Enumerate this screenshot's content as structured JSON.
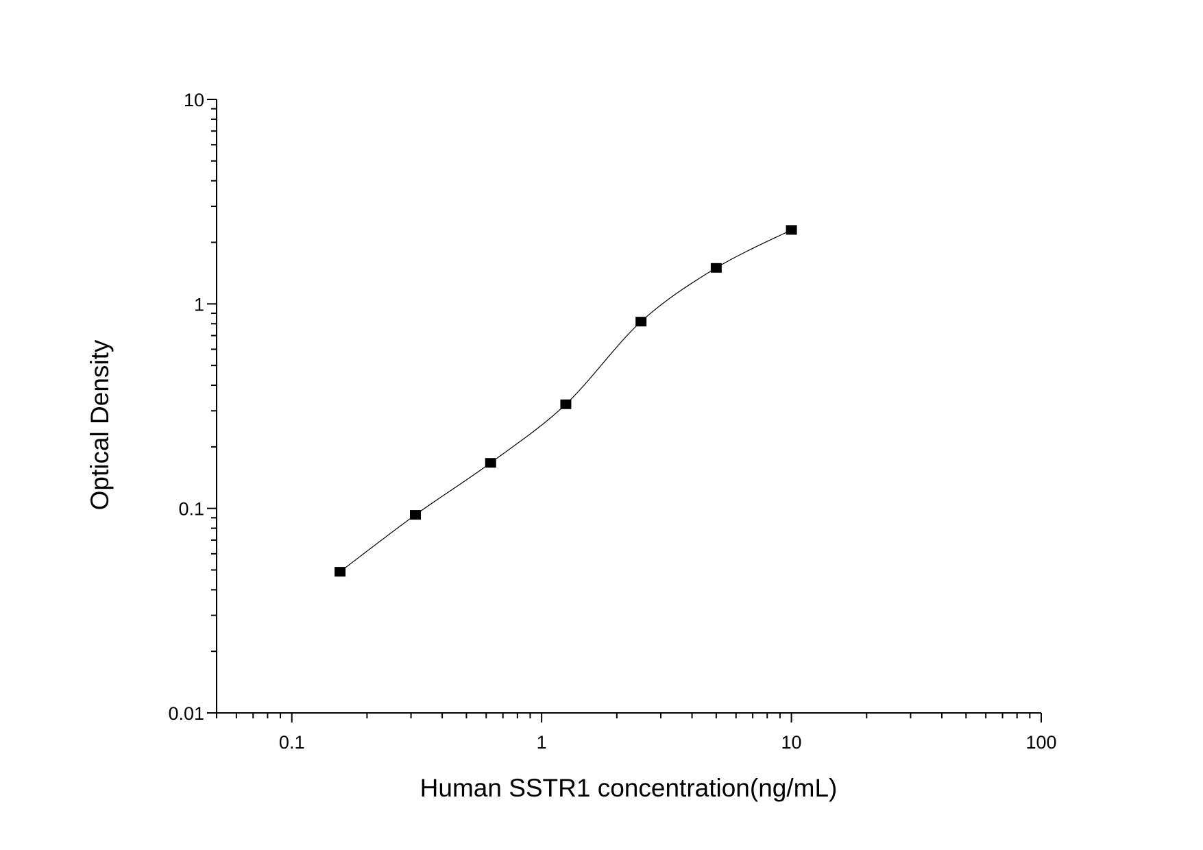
{
  "chart_data": {
    "type": "scatter",
    "title": "",
    "xlabel": "Human SSTR1 concentration(ng/mL)",
    "ylabel": "Optical Density",
    "x_scale": "log",
    "y_scale": "log",
    "xlim": [
      0.05,
      100
    ],
    "ylim": [
      0.01,
      10
    ],
    "x_ticks": [
      0.1,
      1,
      10,
      100
    ],
    "x_tick_labels": [
      "0.1",
      "1",
      "10",
      "100"
    ],
    "y_ticks": [
      0.01,
      0.1,
      1,
      10
    ],
    "y_tick_labels": [
      "0.01",
      "0.1",
      "1",
      "10"
    ],
    "grid": false,
    "marker": "square",
    "marker_color": "#000000",
    "line_color": "#000000",
    "fit_curve": true,
    "x": [
      0.156,
      0.3125,
      0.625,
      1.25,
      2.5,
      5,
      10
    ],
    "y": [
      0.049,
      0.093,
      0.167,
      0.323,
      0.819,
      1.5,
      2.3
    ]
  }
}
